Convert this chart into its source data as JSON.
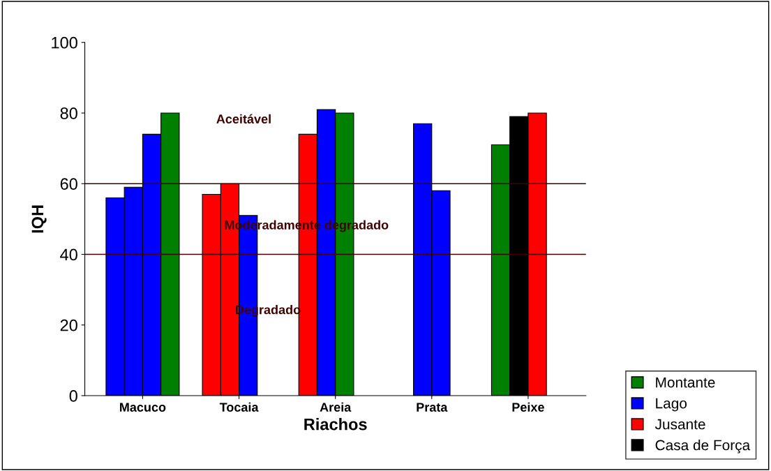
{
  "chart_data": {
    "type": "bar",
    "xlabel": "Riachos",
    "ylabel": "IQH",
    "categories": [
      "Macuco",
      "Tocaia",
      "Areia",
      "Prata",
      "Peixe"
    ],
    "series": [
      {
        "values": [
          56,
          57,
          74,
          null,
          71
        ],
        "colors": [
          "#0000ff",
          "#ff0000",
          "#ff0000",
          null,
          "#008000"
        ]
      },
      {
        "values": [
          59,
          60,
          81,
          77,
          79
        ],
        "colors": [
          "#0000ff",
          "#ff0000",
          "#0000ff",
          "#0000ff",
          "#000000"
        ]
      },
      {
        "values": [
          74,
          51,
          80,
          58,
          80
        ],
        "colors": [
          "#0000ff",
          "#0000ff",
          "#008000",
          "#0000ff",
          "#ff0000"
        ]
      },
      {
        "values": [
          80,
          null,
          null,
          null,
          null
        ],
        "colors": [
          "#008000",
          null,
          null,
          null,
          null
        ]
      },
      {
        "name": "Montante",
        "color": "#008000",
        "values": [
          null,
          null,
          null,
          null,
          null
        ]
      },
      {
        "name": "Lago",
        "color": "#0000ff",
        "values": [
          null,
          null,
          null,
          null,
          null
        ]
      },
      {
        "name": "Jusante",
        "color": "#ff0000",
        "values": [
          null,
          null,
          null,
          null,
          null
        ]
      },
      {
        "name": "Casa de Força",
        "color": "#000000",
        "values": [
          null,
          null,
          null,
          null,
          null
        ]
      }
    ],
    "ref_lines": [
      {
        "axis": "y",
        "value": 60,
        "color": "#400000"
      },
      {
        "axis": "y",
        "value": 40,
        "color": "#400000"
      }
    ],
    "annotations": [
      "Aceitável",
      "Moderadamente degradado",
      "Degradado"
    ],
    "ylim": [
      0,
      100
    ],
    "yticks": [
      0,
      20,
      40,
      60,
      80,
      100
    ],
    "grid": false,
    "legend": "bottom right"
  }
}
